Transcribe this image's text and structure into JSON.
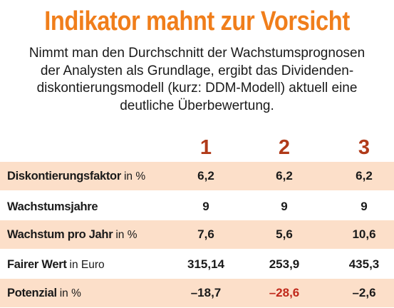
{
  "title": "Indikator mahnt zur Vorsicht",
  "subtitle": {
    "line1": "Nimmt man den Durchschnitt der Wachstumsprognosen",
    "line2": "der Analysten als Grundlage, ergibt das Dividenden-",
    "line3": "diskontierungsmodell (kurz: DDM-Modell) aktuell eine",
    "line4": "deutliche Überbewertung."
  },
  "colors": {
    "title": "#f07e1b",
    "column_heads": "#b03a19",
    "row_shading": "#fcdfc9",
    "highlight_value": "#c0281a"
  },
  "table": {
    "columns": [
      "1",
      "2",
      "3"
    ],
    "rows": [
      {
        "label": "Diskontierungsfaktor",
        "unit": "in %",
        "values": [
          "6,2",
          "6,2",
          "6,2"
        ],
        "shaded": true
      },
      {
        "label": "Wachstumsjahre",
        "unit": "",
        "values": [
          "9",
          "9",
          "9"
        ],
        "shaded": false
      },
      {
        "label": "Wachstum pro Jahr",
        "unit": "in %",
        "values": [
          "7,6",
          "5,6",
          "10,6"
        ],
        "shaded": true
      },
      {
        "label": "Fairer Wert",
        "unit": "in Euro",
        "values": [
          "315,14",
          "253,9",
          "435,3"
        ],
        "shaded": false
      },
      {
        "label": "Potenzial",
        "unit": "in %",
        "values": [
          "–18,7",
          "–28,6",
          "–2,6"
        ],
        "shaded": true,
        "highlight_column": 2
      }
    ]
  }
}
